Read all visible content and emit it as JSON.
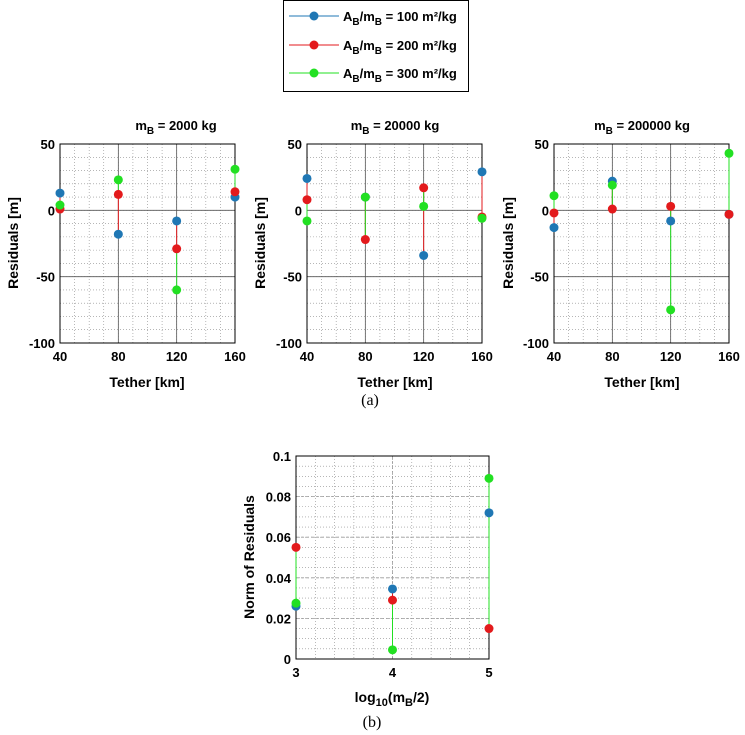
{
  "legend": {
    "entries": [
      {
        "lead": "A",
        "sub1": "B",
        "mid": "/m",
        "sub2": "B",
        "tail": " = 100 m²/kg",
        "color": "#1f77b4"
      },
      {
        "lead": "A",
        "sub1": "B",
        "mid": "/m",
        "sub2": "B",
        "tail": " = 200 m²/kg",
        "color": "#e31a1c"
      },
      {
        "lead": "A",
        "sub1": "B",
        "mid": "/m",
        "sub2": "B",
        "tail": " = 300 m²/kg",
        "color": "#22e022"
      }
    ]
  },
  "colors": {
    "series_a": "#1f77b4",
    "series_b": "#e31a1c",
    "series_c": "#22e022"
  },
  "caption_a": "(a)",
  "caption_b": "(b)",
  "chart_data": [
    {
      "type": "scatter",
      "title_lead": "m",
      "title_sub": "B",
      "title_tail": " = 2000 kg",
      "xlabel": "Tether [km]",
      "ylabel": "Residuals [m]",
      "xlim": [
        40,
        160
      ],
      "ylim": [
        -100,
        50
      ],
      "xticks": [
        40,
        80,
        120,
        160
      ],
      "xtick_labels": [
        "40",
        "80",
        "120",
        "160"
      ],
      "yticks": [
        50,
        0,
        -50,
        -100
      ],
      "ytick_labels": [
        "50",
        "0",
        "-50",
        "-100"
      ],
      "grid": true,
      "x": [
        40,
        80,
        120,
        160
      ],
      "series": [
        {
          "name": "A_B/m_B = 100 m²/kg",
          "values": [
            13,
            -18,
            -8,
            10
          ]
        },
        {
          "name": "A_B/m_B = 200 m²/kg",
          "values": [
            1,
            12,
            -29,
            14
          ]
        },
        {
          "name": "A_B/m_B = 300 m²/kg",
          "values": [
            4,
            23,
            -60,
            31
          ]
        }
      ]
    },
    {
      "type": "scatter",
      "title_lead": "m",
      "title_sub": "B",
      "title_tail": " = 20000 kg",
      "xlabel": "Tether [km]",
      "ylabel": "Residuals [m]",
      "xlim": [
        40,
        160
      ],
      "ylim": [
        -100,
        50
      ],
      "xticks": [
        40,
        80,
        120,
        160
      ],
      "xtick_labels": [
        "40",
        "80",
        "120",
        "160"
      ],
      "yticks": [
        50,
        0,
        -50,
        -100
      ],
      "ytick_labels": [
        "50",
        "0",
        "-50",
        "-100"
      ],
      "grid": true,
      "x": [
        40,
        80,
        120,
        160
      ],
      "series": [
        {
          "name": "A_B/m_B = 100 m²/kg",
          "values": [
            24,
            10,
            -34,
            29
          ]
        },
        {
          "name": "A_B/m_B = 200 m²/kg",
          "values": [
            8,
            -22,
            17,
            -5
          ]
        },
        {
          "name": "A_B/m_B = 300 m²/kg",
          "values": [
            -8,
            10,
            3,
            -6
          ]
        }
      ]
    },
    {
      "type": "scatter",
      "title_lead": "m",
      "title_sub": "B",
      "title_tail": " = 200000 kg",
      "xlabel": "Tether [km]",
      "ylabel": "Residuals [m]",
      "xlim": [
        40,
        160
      ],
      "ylim": [
        -100,
        50
      ],
      "xticks": [
        40,
        80,
        120,
        160
      ],
      "xtick_labels": [
        "40",
        "80",
        "120",
        "160"
      ],
      "yticks": [
        50,
        0,
        -50,
        -100
      ],
      "ytick_labels": [
        "50",
        "0",
        "-50",
        "-100"
      ],
      "grid": true,
      "x": [
        40,
        80,
        120,
        160
      ],
      "series": [
        {
          "name": "A_B/m_B = 100 m²/kg",
          "values": [
            -13,
            22,
            -8,
            -3
          ]
        },
        {
          "name": "A_B/m_B = 200 m²/kg",
          "values": [
            -2,
            1,
            3,
            -3
          ]
        },
        {
          "name": "A_B/m_B = 300 m²/kg",
          "values": [
            11,
            19,
            -75,
            43
          ]
        }
      ]
    },
    {
      "type": "scatter",
      "xlabel_lead": "log",
      "xlabel_sub": "10",
      "xlabel_mid": "(m",
      "xlabel_sub2": "B",
      "xlabel_tail": "/2)",
      "ylabel": "Norm of Residuals",
      "xlim": [
        3,
        5
      ],
      "ylim": [
        0,
        0.1
      ],
      "xticks": [
        3,
        4,
        5
      ],
      "xtick_labels": [
        "3",
        "4",
        "5"
      ],
      "yticks": [
        0.1,
        0.08,
        0.06,
        0.04,
        0.02,
        0
      ],
      "ytick_labels": [
        "0.1",
        "0.08",
        "0.06",
        "0.04",
        "0.02",
        "0"
      ],
      "grid": true,
      "x": [
        3,
        4,
        5
      ],
      "series": [
        {
          "name": "A_B/m_B = 100 m²/kg",
          "values": [
            0.026,
            0.0345,
            0.072
          ]
        },
        {
          "name": "A_B/m_B = 200 m²/kg",
          "values": [
            0.055,
            0.029,
            0.015
          ]
        },
        {
          "name": "A_B/m_B = 300 m²/kg",
          "values": [
            0.0275,
            0.0045,
            0.089
          ]
        }
      ]
    }
  ]
}
